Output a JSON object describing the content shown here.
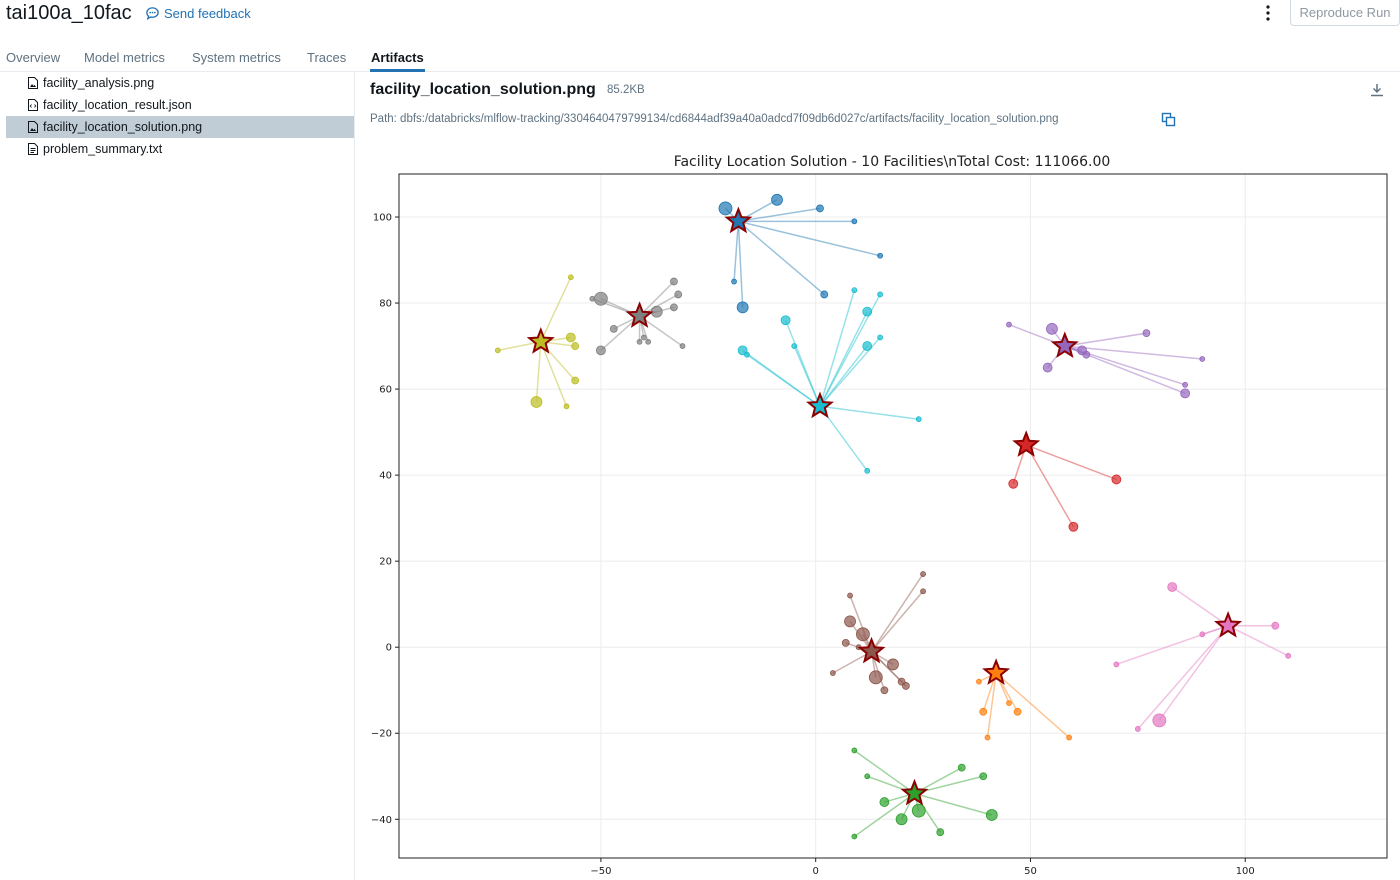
{
  "header": {
    "run_title": "tai100a_10fac",
    "feedback_label": "Send feedback",
    "reproduce_label": "Reproduce Run"
  },
  "tabs": [
    {
      "label": "Overview",
      "active": false
    },
    {
      "label": "Model metrics",
      "active": false
    },
    {
      "label": "System metrics",
      "active": false
    },
    {
      "label": "Traces",
      "active": false
    },
    {
      "label": "Artifacts",
      "active": true
    }
  ],
  "files": [
    {
      "name": "facility_analysis.png",
      "icon": "image-file-icon",
      "selected": false
    },
    {
      "name": "facility_location_result.json",
      "icon": "json-file-icon",
      "selected": false
    },
    {
      "name": "facility_location_solution.png",
      "icon": "image-file-icon",
      "selected": true
    },
    {
      "name": "problem_summary.txt",
      "icon": "text-file-icon",
      "selected": false
    }
  ],
  "artifact": {
    "name": "facility_location_solution.png",
    "size": "85.2KB",
    "path": "Path: dbfs:/databricks/mlflow-tracking/3304640479799134/cd6844adf39a40a0adcd7f09db6d027c/artifacts/facility_location_solution.png"
  },
  "chart_data": {
    "type": "scatter",
    "title": "Facility Location Solution - 10 Facilities\\nTotal Cost: 111066.00",
    "xlabel": "",
    "ylabel": "",
    "xlim": [
      -97,
      133
    ],
    "ylim": [
      -49,
      110
    ],
    "xticks": [
      -50,
      0,
      50,
      100
    ],
    "yticks": [
      -40,
      -20,
      0,
      20,
      40,
      60,
      80,
      100
    ],
    "grid": true,
    "clusters": [
      {
        "color": "#1f77b4",
        "facility": [
          -18,
          99
        ],
        "customers": [
          [
            -21,
            102,
            6
          ],
          [
            -9,
            104,
            5
          ],
          [
            1,
            102,
            3
          ],
          [
            9,
            99,
            2
          ],
          [
            15,
            91,
            2
          ],
          [
            2,
            82,
            3
          ],
          [
            -17,
            79,
            5
          ],
          [
            -19,
            85,
            2
          ]
        ]
      },
      {
        "color": "#7f7f7f",
        "facility": [
          -41,
          77
        ],
        "customers": [
          [
            -50,
            81,
            6
          ],
          [
            -33,
            85,
            3
          ],
          [
            -32,
            82,
            3
          ],
          [
            -37,
            78,
            5
          ],
          [
            -33,
            79,
            3
          ],
          [
            -31,
            70,
            2
          ],
          [
            -47,
            74,
            3
          ],
          [
            -50,
            69,
            4
          ],
          [
            -40,
            72,
            2
          ],
          [
            -41,
            71,
            2
          ],
          [
            -39,
            71,
            2
          ],
          [
            -52,
            81,
            2
          ]
        ]
      },
      {
        "color": "#bcbd22",
        "facility": [
          -64,
          71
        ],
        "customers": [
          [
            -57,
            86,
            2
          ],
          [
            -57,
            72,
            4
          ],
          [
            -56,
            70,
            3
          ],
          [
            -74,
            69,
            2
          ],
          [
            -56,
            62,
            3
          ],
          [
            -65,
            57,
            5
          ],
          [
            -58,
            56,
            2
          ]
        ]
      },
      {
        "color": "#17becf",
        "facility": [
          1,
          56
        ],
        "customers": [
          [
            -7,
            76,
            4
          ],
          [
            -17,
            69,
            4
          ],
          [
            -16,
            68,
            2
          ],
          [
            -5,
            70,
            2
          ],
          [
            9,
            83,
            2
          ],
          [
            12,
            78,
            4
          ],
          [
            15,
            82,
            2
          ],
          [
            15,
            72,
            2
          ],
          [
            12,
            70,
            4
          ],
          [
            24,
            53,
            2
          ],
          [
            12,
            41,
            2
          ]
        ]
      },
      {
        "color": "#9467bd",
        "facility": [
          58,
          70
        ],
        "customers": [
          [
            45,
            75,
            2
          ],
          [
            55,
            74,
            5
          ],
          [
            54,
            65,
            4
          ],
          [
            77,
            73,
            3
          ],
          [
            62,
            69,
            4
          ],
          [
            63,
            68,
            3
          ],
          [
            90,
            67,
            2
          ],
          [
            86,
            61,
            2
          ],
          [
            86,
            59,
            4
          ]
        ]
      },
      {
        "color": "#d62728",
        "facility": [
          49,
          47
        ],
        "customers": [
          [
            46,
            38,
            4
          ],
          [
            70,
            39,
            4
          ],
          [
            60,
            28,
            4
          ]
        ]
      },
      {
        "color": "#e377c2",
        "facility": [
          96,
          5
        ],
        "customers": [
          [
            83,
            14,
            4
          ],
          [
            90,
            3,
            2
          ],
          [
            107,
            5,
            3
          ],
          [
            110,
            -2,
            2
          ],
          [
            70,
            -4,
            2
          ],
          [
            80,
            -17,
            6
          ],
          [
            75,
            -19,
            2
          ]
        ]
      },
      {
        "color": "#8c564b",
        "facility": [
          13,
          -1
        ],
        "customers": [
          [
            8,
            12,
            2
          ],
          [
            25,
            17,
            2
          ],
          [
            25,
            13,
            2
          ],
          [
            8,
            6,
            5
          ],
          [
            11,
            3,
            6
          ],
          [
            7,
            1,
            3
          ],
          [
            10,
            0,
            2
          ],
          [
            18,
            -4,
            5
          ],
          [
            4,
            -6,
            2
          ],
          [
            14,
            -7,
            6
          ],
          [
            16,
            -10,
            3
          ],
          [
            20,
            -8,
            3
          ],
          [
            21,
            -9,
            3
          ]
        ]
      },
      {
        "color": "#ff7f0e",
        "facility": [
          42,
          -6
        ],
        "customers": [
          [
            38,
            -8,
            2
          ],
          [
            39,
            -15,
            3
          ],
          [
            45,
            -13,
            2
          ],
          [
            47,
            -15,
            3
          ],
          [
            40,
            -21,
            2
          ],
          [
            59,
            -21,
            2
          ]
        ]
      },
      {
        "color": "#2ca02c",
        "facility": [
          23,
          -34
        ],
        "customers": [
          [
            9,
            -24,
            2
          ],
          [
            12,
            -30,
            2
          ],
          [
            34,
            -28,
            3
          ],
          [
            39,
            -30,
            3
          ],
          [
            16,
            -36,
            4
          ],
          [
            24,
            -38,
            6
          ],
          [
            20,
            -40,
            5
          ],
          [
            41,
            -39,
            5
          ],
          [
            29,
            -43,
            3
          ],
          [
            9,
            -44,
            2
          ]
        ]
      }
    ]
  }
}
